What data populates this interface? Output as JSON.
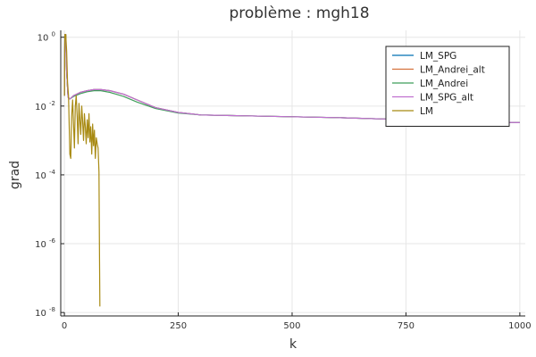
{
  "chart_data": {
    "type": "line",
    "title": "problème : mgh18",
    "xlabel": "k",
    "ylabel": "grad",
    "xlim": [
      -8,
      1012
    ],
    "ylim_log10": [
      -8.1,
      0.2
    ],
    "y_scale": "log10",
    "x_ticks": [
      0,
      250,
      500,
      750,
      1000
    ],
    "x_tick_labels": [
      "0",
      "250",
      "500",
      "750",
      "1000"
    ],
    "y_ticks": [
      {
        "value": 1,
        "base": "10",
        "exponent": "0"
      },
      {
        "value": 0.01,
        "base": "10",
        "exponent": "-2"
      },
      {
        "value": 0.0001,
        "base": "10",
        "exponent": "-4"
      },
      {
        "value": 1e-06,
        "base": "10",
        "exponent": "-6"
      },
      {
        "value": 1e-08,
        "base": "10",
        "exponent": "-8"
      }
    ],
    "grid": true,
    "legend_position": "top-right",
    "series": [
      {
        "name": "LM_SPG",
        "color": "#0072b2",
        "x": [
          0,
          1,
          3,
          5,
          8,
          12,
          20,
          35,
          50,
          65,
          80,
          100,
          130,
          160,
          200,
          250,
          300,
          400,
          500,
          600,
          700,
          800,
          900,
          1000
        ],
        "y": [
          0.02,
          1.2,
          1.2,
          0.1,
          0.018,
          0.016,
          0.02,
          0.025,
          0.028,
          0.03,
          0.03,
          0.028,
          0.022,
          0.015,
          0.009,
          0.0065,
          0.0055,
          0.0052,
          0.0049,
          0.0046,
          0.0042,
          0.0038,
          0.0035,
          0.0033
        ]
      },
      {
        "name": "LM_Andrei_alt",
        "color": "#d5713b",
        "x": [
          0,
          1,
          3,
          5,
          8,
          12,
          20,
          35,
          50,
          65,
          80,
          100,
          130,
          160,
          200,
          250,
          300,
          400,
          500,
          600,
          700,
          800,
          900,
          1000
        ],
        "y": [
          0.02,
          1.2,
          1.2,
          0.1,
          0.018,
          0.016,
          0.02,
          0.025,
          0.028,
          0.03,
          0.03,
          0.028,
          0.022,
          0.015,
          0.009,
          0.0065,
          0.0055,
          0.0052,
          0.0049,
          0.0046,
          0.0042,
          0.0038,
          0.0035,
          0.0033
        ]
      },
      {
        "name": "LM_Andrei",
        "color": "#3f9e5a",
        "x": [
          0,
          1,
          3,
          5,
          8,
          12,
          20,
          35,
          50,
          65,
          80,
          100,
          130,
          160,
          200,
          250,
          300,
          400,
          500,
          600,
          700,
          800,
          900,
          1000
        ],
        "y": [
          0.02,
          1.2,
          1.2,
          0.1,
          0.018,
          0.016,
          0.019,
          0.023,
          0.026,
          0.028,
          0.028,
          0.025,
          0.019,
          0.013,
          0.0085,
          0.0063,
          0.0055,
          0.0052,
          0.0049,
          0.0046,
          0.0042,
          0.0038,
          0.0035,
          0.0033
        ]
      },
      {
        "name": "LM_SPG_alt",
        "color": "#c070d0",
        "x": [
          0,
          1,
          3,
          5,
          8,
          12,
          20,
          35,
          50,
          65,
          80,
          100,
          130,
          160,
          200,
          250,
          300,
          400,
          500,
          600,
          700,
          800,
          900,
          1000
        ],
        "y": [
          0.02,
          1.2,
          1.2,
          0.1,
          0.018,
          0.016,
          0.02,
          0.025,
          0.028,
          0.03,
          0.03,
          0.028,
          0.022,
          0.015,
          0.009,
          0.0065,
          0.0055,
          0.0052,
          0.0049,
          0.0046,
          0.0042,
          0.0038,
          0.0035,
          0.0033
        ]
      },
      {
        "name": "LM",
        "color": "#a88a12",
        "x": [
          0,
          1,
          3,
          5,
          7,
          9,
          12,
          14,
          16,
          18,
          20,
          22,
          24,
          26,
          28,
          30,
          32,
          34,
          36,
          38,
          40,
          42,
          44,
          46,
          48,
          50,
          52,
          54,
          56,
          58,
          60,
          62,
          64,
          66,
          68,
          70,
          72,
          74,
          76,
          77,
          78
        ],
        "y": [
          0.02,
          1.2,
          1.2,
          0.4,
          0.05,
          0.02,
          0.0004,
          0.0003,
          0.005,
          0.015,
          0.003,
          0.0006,
          0.01,
          0.02,
          0.005,
          0.0008,
          0.012,
          0.004,
          0.0015,
          0.01,
          0.0035,
          0.001,
          0.006,
          0.0025,
          0.0008,
          0.004,
          0.0012,
          0.006,
          0.0009,
          0.0025,
          0.0004,
          0.003,
          0.0007,
          0.002,
          0.0003,
          0.0012,
          0.0008,
          0.0006,
          0.00012,
          1e-06,
          1.5e-08
        ]
      }
    ]
  }
}
